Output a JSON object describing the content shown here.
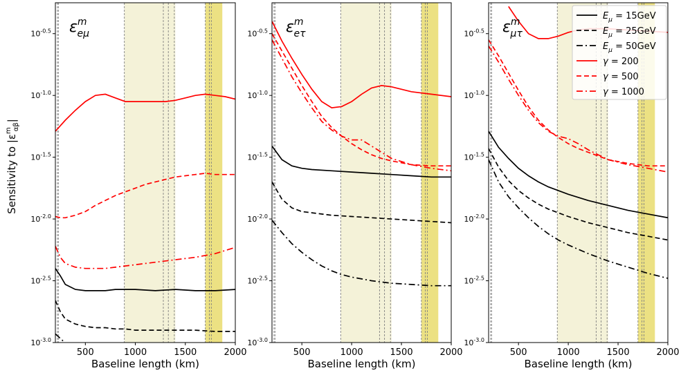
{
  "ylabel": "Sensitivity to |ε",
  "ylabel_sub": "αβ",
  "ylabel_sup": "m",
  "xlabel": "Baseline length (km)",
  "legend": [
    {
      "label": "E",
      "sub": "μ",
      "tail": " = 15GeV",
      "color": "#000000",
      "dash": "solid"
    },
    {
      "label": "E",
      "sub": "μ",
      "tail": " = 25GeV",
      "color": "#000000",
      "dash": "dashed"
    },
    {
      "label": "E",
      "sub": "μ",
      "tail": " = 50GeV",
      "color": "#000000",
      "dash": "dashdot"
    },
    {
      "label": "γ",
      "sub": "",
      "tail": " = 200",
      "color": "#ff0000",
      "dash": "solid"
    },
    {
      "label": "γ",
      "sub": "",
      "tail": " = 500",
      "color": "#ff0000",
      "dash": "dashed"
    },
    {
      "label": "γ",
      "sub": "",
      "tail": " = 1000",
      "color": "#ff0000",
      "dash": "dashdot"
    }
  ],
  "chart_data": [
    {
      "type": "line",
      "title": "ε_eμ^m",
      "title_main": "ε",
      "title_sub": "eμ",
      "title_sup": "m",
      "xlim": [
        200,
        2000
      ],
      "ylim": [
        -3.0,
        -0.25
      ],
      "y_log": true,
      "x_ticks": [
        500,
        1000,
        1500,
        2000
      ],
      "y_ticks": [
        -0.5,
        -1.0,
        -1.5,
        -2.0,
        -2.5,
        -3.0
      ],
      "y_tick_labels": [
        "10^-0.5",
        "10^-1.0",
        "10^-1.5",
        "10^-2.0",
        "10^-2.5",
        "10^-3.0"
      ],
      "shaded_bands": [
        {
          "from": 890,
          "to": 1400,
          "color": "#f4f2d8"
        },
        {
          "from": 1700,
          "to": 1870,
          "color": "#ece183"
        }
      ],
      "vlines": [
        220,
        230,
        890,
        1280,
        1330,
        1390,
        1700,
        1740,
        1760
      ],
      "series": [
        {
          "name": "E_μ = 15GeV",
          "color": "#000000",
          "dash": "solid",
          "x": [
            200,
            250,
            300,
            400,
            500,
            600,
            700,
            800,
            900,
            1000,
            1200,
            1400,
            1600,
            1800,
            2000
          ],
          "y": [
            -2.4,
            -2.46,
            -2.53,
            -2.57,
            -2.58,
            -2.58,
            -2.58,
            -2.57,
            -2.57,
            -2.57,
            -2.58,
            -2.57,
            -2.58,
            -2.58,
            -2.57
          ]
        },
        {
          "name": "E_μ = 25GeV",
          "color": "#000000",
          "dash": "dashed",
          "x": [
            200,
            250,
            300,
            400,
            500,
            600,
            700,
            800,
            900,
            1000,
            1200,
            1400,
            1600,
            1800,
            2000
          ],
          "y": [
            -2.66,
            -2.75,
            -2.81,
            -2.85,
            -2.87,
            -2.88,
            -2.88,
            -2.89,
            -2.89,
            -2.9,
            -2.9,
            -2.9,
            -2.9,
            -2.91,
            -2.91
          ]
        },
        {
          "name": "E_μ = 50GeV",
          "color": "#000000",
          "dash": "dashdot",
          "x": [
            200,
            240,
            280,
            320
          ],
          "y": [
            -2.93,
            -2.96,
            -2.99,
            -3.02
          ]
        },
        {
          "name": "γ = 200",
          "color": "#ff0000",
          "dash": "solid",
          "x": [
            200,
            300,
            400,
            500,
            600,
            700,
            800,
            900,
            1000,
            1100,
            1200,
            1300,
            1400,
            1500,
            1600,
            1700,
            1800,
            1900,
            2000
          ],
          "y": [
            -1.29,
            -1.2,
            -1.12,
            -1.05,
            -1.0,
            -0.99,
            -1.02,
            -1.05,
            -1.05,
            -1.05,
            -1.05,
            -1.05,
            -1.04,
            -1.02,
            -1.0,
            -0.99,
            -1.0,
            -1.01,
            -1.03
          ]
        },
        {
          "name": "γ = 500",
          "color": "#ff0000",
          "dash": "dashed",
          "x": [
            200,
            250,
            300,
            400,
            500,
            600,
            700,
            800,
            900,
            1000,
            1100,
            1200,
            1300,
            1400,
            1500,
            1600,
            1700,
            1800,
            1900,
            2000
          ],
          "y": [
            -1.98,
            -1.99,
            -1.99,
            -1.97,
            -1.94,
            -1.89,
            -1.85,
            -1.81,
            -1.78,
            -1.75,
            -1.72,
            -1.7,
            -1.68,
            -1.66,
            -1.65,
            -1.64,
            -1.63,
            -1.64,
            -1.64,
            -1.64
          ]
        },
        {
          "name": "γ = 1000",
          "color": "#ff0000",
          "dash": "dashdot",
          "x": [
            200,
            250,
            300,
            400,
            500,
            600,
            700,
            800,
            900,
            1000,
            1200,
            1400,
            1600,
            1800,
            2000
          ],
          "y": [
            -2.22,
            -2.31,
            -2.36,
            -2.39,
            -2.4,
            -2.4,
            -2.4,
            -2.39,
            -2.38,
            -2.37,
            -2.35,
            -2.33,
            -2.31,
            -2.28,
            -2.23
          ]
        }
      ]
    },
    {
      "type": "line",
      "title": "ε_eτ^m",
      "title_main": "ε",
      "title_sub": "eτ",
      "title_sup": "m",
      "xlim": [
        200,
        2000
      ],
      "ylim": [
        -3.0,
        -0.25
      ],
      "y_log": true,
      "x_ticks": [
        500,
        1000,
        1500,
        2000
      ],
      "y_ticks": [
        -0.5,
        -1.0,
        -1.5,
        -2.0,
        -2.5,
        -3.0
      ],
      "y_tick_labels": [
        "10^-0.5",
        "10^-1.0",
        "10^-1.5",
        "10^-2.0",
        "10^-2.5",
        "10^-3.0"
      ],
      "shaded_bands": [
        {
          "from": 890,
          "to": 1400,
          "color": "#f4f2d8"
        },
        {
          "from": 1700,
          "to": 1870,
          "color": "#ece183"
        }
      ],
      "vlines": [
        220,
        230,
        890,
        1280,
        1330,
        1390,
        1700,
        1740,
        1760
      ],
      "series": [
        {
          "name": "E_μ = 15GeV",
          "color": "#000000",
          "dash": "solid",
          "x": [
            200,
            300,
            400,
            500,
            600,
            800,
            1000,
            1200,
            1400,
            1600,
            1800,
            2000
          ],
          "y": [
            -1.41,
            -1.52,
            -1.57,
            -1.59,
            -1.6,
            -1.61,
            -1.62,
            -1.63,
            -1.64,
            -1.65,
            -1.66,
            -1.66
          ]
        },
        {
          "name": "E_μ = 25GeV",
          "color": "#000000",
          "dash": "dashed",
          "x": [
            200,
            300,
            400,
            500,
            600,
            800,
            1000,
            1200,
            1400,
            1600,
            1800,
            2000
          ],
          "y": [
            -1.7,
            -1.84,
            -1.91,
            -1.94,
            -1.95,
            -1.97,
            -1.98,
            -1.99,
            -2.0,
            -2.01,
            -2.02,
            -2.03
          ]
        },
        {
          "name": "E_μ = 50GeV",
          "color": "#000000",
          "dash": "dashdot",
          "x": [
            200,
            300,
            400,
            500,
            600,
            700,
            800,
            900,
            1000,
            1200,
            1400,
            1600,
            1800,
            2000
          ],
          "y": [
            -2.01,
            -2.11,
            -2.2,
            -2.27,
            -2.33,
            -2.38,
            -2.42,
            -2.45,
            -2.47,
            -2.5,
            -2.52,
            -2.53,
            -2.54,
            -2.54
          ]
        },
        {
          "name": "γ = 200",
          "color": "#ff0000",
          "dash": "solid",
          "x": [
            200,
            300,
            400,
            500,
            600,
            700,
            800,
            900,
            1000,
            1100,
            1200,
            1300,
            1400,
            1600,
            1800,
            2000
          ],
          "y": [
            -0.4,
            -0.56,
            -0.7,
            -0.83,
            -0.95,
            -1.05,
            -1.1,
            -1.09,
            -1.05,
            -0.99,
            -0.94,
            -0.92,
            -0.93,
            -0.97,
            -0.99,
            -1.01
          ]
        },
        {
          "name": "γ = 500",
          "color": "#ff0000",
          "dash": "dashed",
          "x": [
            200,
            300,
            400,
            500,
            600,
            700,
            800,
            900,
            1000,
            1100,
            1200,
            1300,
            1400,
            1600,
            1800,
            2000
          ],
          "y": [
            -0.5,
            -0.64,
            -0.78,
            -0.92,
            -1.05,
            -1.17,
            -1.26,
            -1.33,
            -1.39,
            -1.44,
            -1.48,
            -1.51,
            -1.53,
            -1.56,
            -1.57,
            -1.57
          ]
        },
        {
          "name": "γ = 1000",
          "color": "#ff0000",
          "dash": "dashdot",
          "x": [
            200,
            300,
            400,
            500,
            600,
            700,
            800,
            900,
            1000,
            1100,
            1200,
            1300,
            1400,
            1600,
            1800,
            2000
          ],
          "y": [
            -0.55,
            -0.7,
            -0.85,
            -0.98,
            -1.1,
            -1.21,
            -1.28,
            -1.33,
            -1.36,
            -1.36,
            -1.41,
            -1.46,
            -1.51,
            -1.56,
            -1.59,
            -1.61
          ]
        }
      ]
    },
    {
      "type": "line",
      "title": "ε_μτ^m",
      "title_main": "ε",
      "title_sub": "μτ",
      "title_sup": "m",
      "xlim": [
        200,
        2000
      ],
      "ylim": [
        -3.0,
        -0.25
      ],
      "y_log": true,
      "x_ticks": [
        500,
        1000,
        1500,
        2000
      ],
      "y_ticks": [
        -0.5,
        -1.0,
        -1.5,
        -2.0,
        -2.5,
        -3.0
      ],
      "y_tick_labels": [
        "10^-0.5",
        "10^-1.0",
        "10^-1.5",
        "10^-2.0",
        "10^-2.5",
        "10^-3.0"
      ],
      "shaded_bands": [
        {
          "from": 890,
          "to": 1400,
          "color": "#f4f2d8"
        },
        {
          "from": 1700,
          "to": 1870,
          "color": "#ece183"
        }
      ],
      "vlines": [
        220,
        230,
        890,
        1280,
        1330,
        1390,
        1700,
        1740,
        1760
      ],
      "series": [
        {
          "name": "E_μ = 15GeV",
          "color": "#000000",
          "dash": "solid",
          "x": [
            200,
            300,
            400,
            500,
            600,
            700,
            800,
            900,
            1000,
            1200,
            1400,
            1600,
            1800,
            2000
          ],
          "y": [
            -1.29,
            -1.42,
            -1.51,
            -1.59,
            -1.65,
            -1.7,
            -1.74,
            -1.77,
            -1.8,
            -1.85,
            -1.89,
            -1.93,
            -1.96,
            -1.99
          ]
        },
        {
          "name": "E_μ = 25GeV",
          "color": "#000000",
          "dash": "dashed",
          "x": [
            200,
            300,
            400,
            500,
            600,
            700,
            800,
            900,
            1000,
            1200,
            1400,
            1600,
            1800,
            2000
          ],
          "y": [
            -1.43,
            -1.58,
            -1.69,
            -1.77,
            -1.83,
            -1.88,
            -1.92,
            -1.95,
            -1.98,
            -2.03,
            -2.07,
            -2.11,
            -2.14,
            -2.17
          ]
        },
        {
          "name": "E_μ = 50GeV",
          "color": "#000000",
          "dash": "dashdot",
          "x": [
            200,
            300,
            400,
            500,
            600,
            700,
            800,
            900,
            1000,
            1200,
            1400,
            1600,
            1800,
            2000
          ],
          "y": [
            -1.52,
            -1.7,
            -1.82,
            -1.91,
            -1.99,
            -2.06,
            -2.12,
            -2.17,
            -2.21,
            -2.28,
            -2.34,
            -2.39,
            -2.44,
            -2.48
          ]
        },
        {
          "name": "γ = 200",
          "color": "#ff0000",
          "dash": "solid",
          "x": [
            400,
            500,
            600,
            700,
            800,
            900,
            1000,
            1100,
            1200,
            1400,
            1600,
            1800,
            2000
          ],
          "y": [
            -0.28,
            -0.4,
            -0.5,
            -0.54,
            -0.54,
            -0.52,
            -0.49,
            -0.47,
            -0.46,
            -0.46,
            -0.47,
            -0.48,
            -0.49
          ]
        },
        {
          "name": "γ = 500",
          "color": "#ff0000",
          "dash": "dashed",
          "x": [
            200,
            300,
            400,
            500,
            600,
            700,
            800,
            900,
            1000,
            1100,
            1200,
            1300,
            1400,
            1600,
            1800,
            2000
          ],
          "y": [
            -0.55,
            -0.68,
            -0.82,
            -0.96,
            -1.09,
            -1.2,
            -1.28,
            -1.34,
            -1.39,
            -1.43,
            -1.46,
            -1.49,
            -1.52,
            -1.55,
            -1.57,
            -1.57
          ]
        },
        {
          "name": "γ = 1000",
          "color": "#ff0000",
          "dash": "dashdot",
          "x": [
            200,
            300,
            400,
            500,
            600,
            700,
            800,
            900,
            1000,
            1100,
            1200,
            1300,
            1400,
            1600,
            1800,
            2000
          ],
          "y": [
            -0.6,
            -0.73,
            -0.87,
            -1.0,
            -1.12,
            -1.22,
            -1.29,
            -1.33,
            -1.35,
            -1.39,
            -1.44,
            -1.48,
            -1.52,
            -1.56,
            -1.59,
            -1.62
          ]
        }
      ]
    }
  ]
}
